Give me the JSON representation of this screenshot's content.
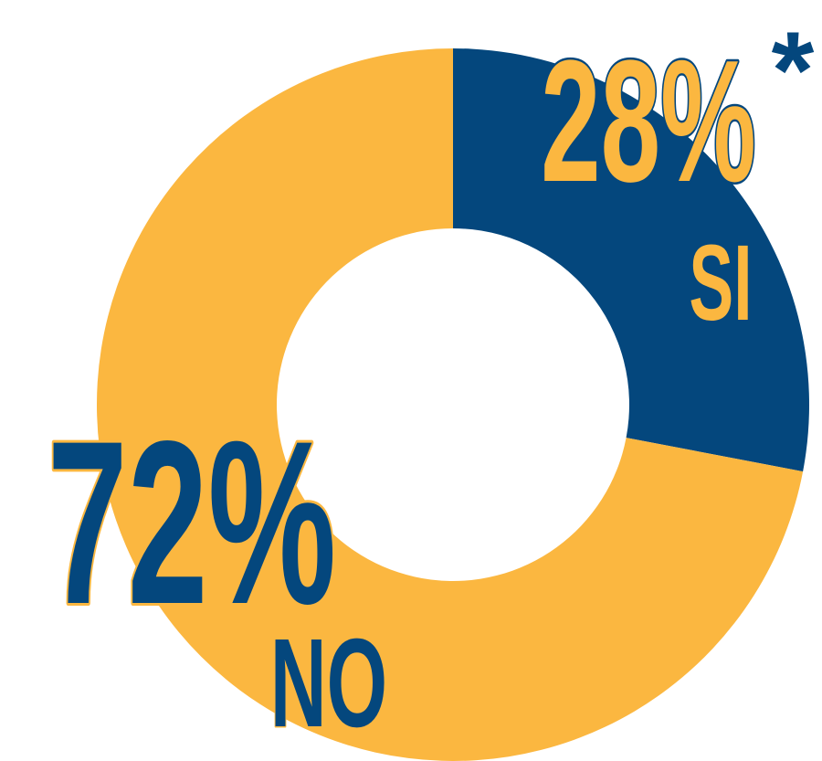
{
  "chart_data": {
    "type": "pie",
    "donut": true,
    "slices": [
      {
        "label": "SI",
        "value": 28,
        "value_label": "28%",
        "color": "#04477D",
        "text_color": "#FBB740"
      },
      {
        "label": "NO",
        "value": 72,
        "value_label": "72%",
        "color": "#FBB740",
        "text_color": "#04477D"
      }
    ],
    "annotation": "*",
    "legend": "none"
  }
}
